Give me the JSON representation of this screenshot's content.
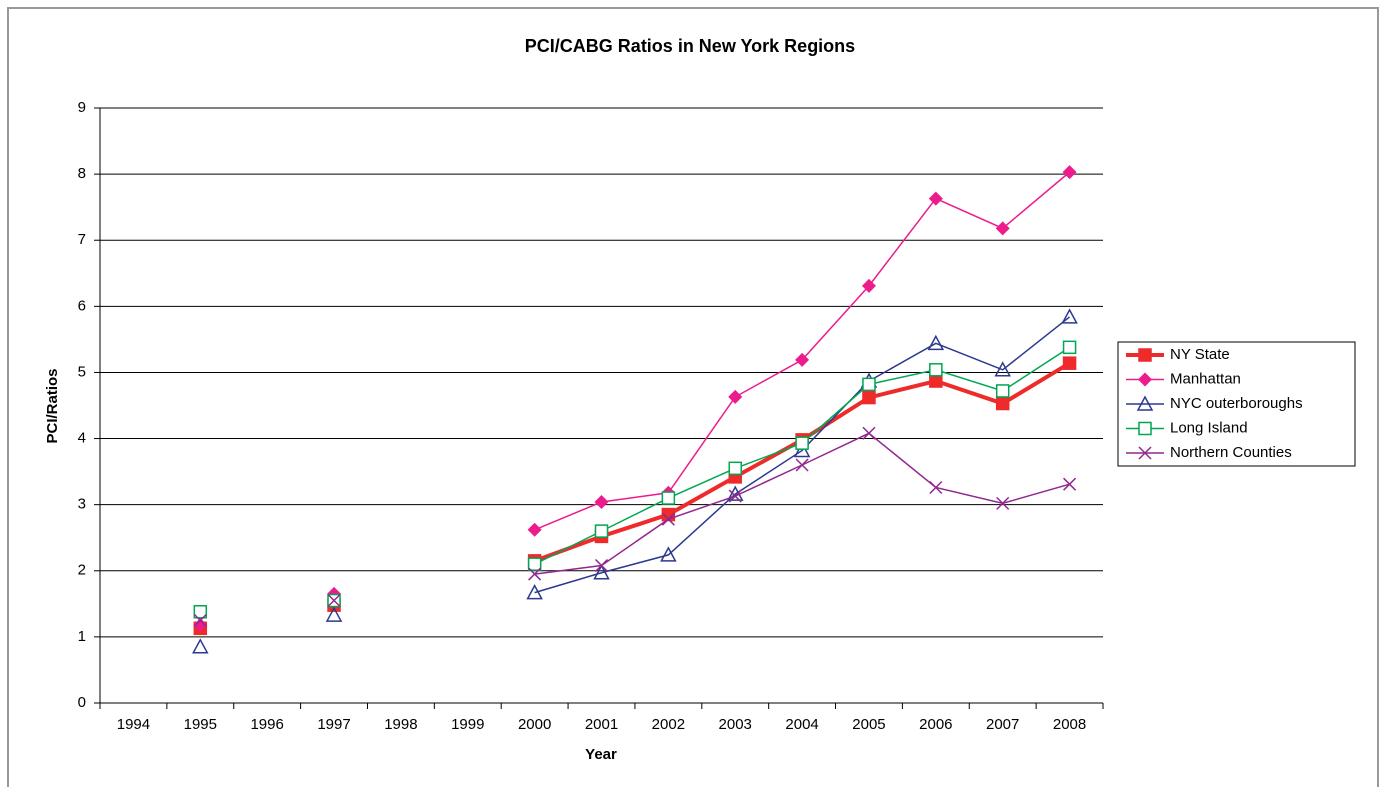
{
  "chart_data": {
    "type": "line",
    "title": "PCI/CABG Ratios in New York Regions",
    "xlabel": "Year",
    "ylabel": "PCI/Ratios",
    "categories": [
      "1994",
      "1995",
      "1996",
      "1997",
      "1998",
      "1999",
      "2000",
      "2001",
      "2002",
      "2003",
      "2004",
      "2005",
      "2006",
      "2007",
      "2008"
    ],
    "ylim": [
      0,
      9
    ],
    "yticks": [
      0,
      1,
      2,
      3,
      4,
      5,
      6,
      7,
      8,
      9
    ],
    "grid": true,
    "legend": "right",
    "series": [
      {
        "name": "NY State",
        "color": "#ee2a2a",
        "marker": "square-filled",
        "line_width": 4,
        "values": [
          null,
          1.13,
          null,
          1.48,
          null,
          null,
          2.15,
          2.52,
          2.85,
          3.42,
          3.98,
          4.62,
          4.87,
          4.53,
          5.14
        ]
      },
      {
        "name": "Manhattan",
        "color": "#ec1c8c",
        "marker": "diamond-filled",
        "line_width": 1.5,
        "values": [
          null,
          1.18,
          null,
          1.65,
          null,
          null,
          2.62,
          3.04,
          3.18,
          4.63,
          5.19,
          6.31,
          7.63,
          7.18,
          8.03
        ]
      },
      {
        "name": "NYC outerboroughs",
        "color": "#2b3990",
        "marker": "triangle-open",
        "line_width": 1.5,
        "values": [
          null,
          0.85,
          null,
          1.33,
          null,
          null,
          1.67,
          1.97,
          2.24,
          3.16,
          3.82,
          4.87,
          5.44,
          5.04,
          5.84
        ]
      },
      {
        "name": "Long Island",
        "color": "#00a651",
        "marker": "square-open",
        "line_width": 1.5,
        "values": [
          null,
          1.38,
          null,
          1.55,
          null,
          null,
          2.1,
          2.6,
          3.1,
          3.55,
          3.93,
          4.82,
          5.04,
          4.72,
          5.38
        ]
      },
      {
        "name": "Northern Counties",
        "color": "#92278f",
        "marker": "x",
        "line_width": 1.5,
        "values": [
          null,
          1.25,
          null,
          1.55,
          null,
          null,
          1.95,
          2.08,
          2.78,
          3.13,
          3.6,
          4.08,
          3.26,
          3.02,
          3.31
        ]
      }
    ]
  }
}
